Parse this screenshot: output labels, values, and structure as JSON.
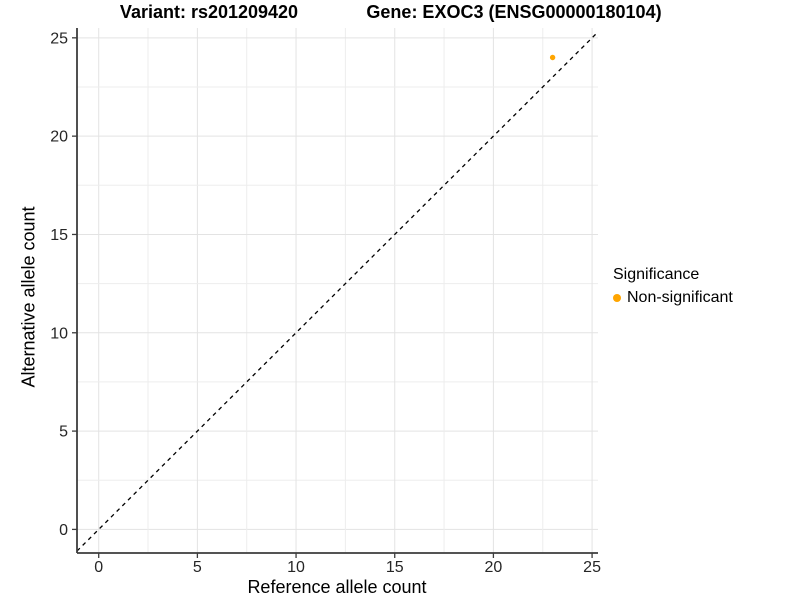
{
  "titles": {
    "variant": "Variant: rs201209420",
    "gene": "Gene: EXOC3 (ENSG00000180104)"
  },
  "chart_data": {
    "type": "scatter",
    "title_left": "Variant: rs201209420",
    "title_right": "Gene: EXOC3 (ENSG00000180104)",
    "xlabel": "Reference allele count",
    "ylabel": "Alternative allele count",
    "xlim": [
      -1.1,
      25.3
    ],
    "ylim": [
      -1.2,
      25.5
    ],
    "xticks": [
      0,
      5,
      10,
      15,
      20,
      25
    ],
    "yticks": [
      0,
      5,
      10,
      15,
      20,
      25
    ],
    "minor_grid_step": 2.5,
    "grid": true,
    "identity_line": {
      "slope": 1,
      "intercept": 0,
      "style": "dashed",
      "color": "#000000"
    },
    "points": [
      {
        "x": 23,
        "y": 24,
        "series": "Non-significant"
      }
    ],
    "series": [
      {
        "name": "Non-significant",
        "color": "#FFA500"
      }
    ],
    "legend": {
      "title": "Significance",
      "position": "right",
      "items": [
        {
          "label": "Non-significant",
          "color": "#FFA500"
        }
      ]
    }
  },
  "colors": {
    "background": "#ffffff",
    "grid_major": "#e3e3e3",
    "grid_minor": "#ededed",
    "axis_line": "#3c3c3c",
    "tick_text": "#262626",
    "point": "#FFA500"
  }
}
